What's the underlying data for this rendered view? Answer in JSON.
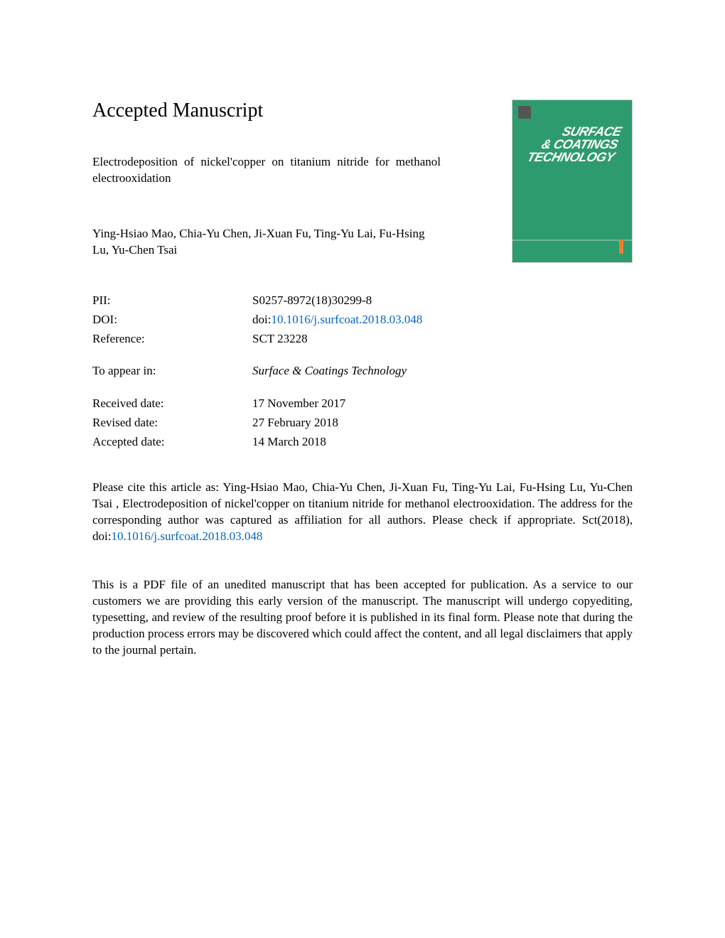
{
  "header": {
    "main_title": "Accepted Manuscript",
    "article_title": "Electrodeposition of nickel'copper on titanium nitride for methanol electrooxidation",
    "authors": "Ying-Hsiao Mao, Chia-Yu Chen, Ji-Xuan Fu, Ting-Yu Lai, Fu-Hsing Lu, Yu-Chen Tsai"
  },
  "journal_cover": {
    "line1": "SURFACE",
    "line2": "& COATINGS",
    "line3": "TECHNOLOGY",
    "background_color": "#2e9b6e",
    "text_color": "#ffffff"
  },
  "metadata": {
    "pii": {
      "label": "PII:",
      "value": "S0257-8972(18)30299-8"
    },
    "doi": {
      "label": "DOI:",
      "prefix": "doi:",
      "link": "10.1016/j.surfcoat.2018.03.048"
    },
    "reference": {
      "label": "Reference:",
      "value": "SCT 23228"
    },
    "to_appear": {
      "label": "To appear in:",
      "value": "Surface & Coatings Technology"
    },
    "received": {
      "label": "Received date:",
      "value": "17 November 2017"
    },
    "revised": {
      "label": "Revised date:",
      "value": "27 February 2018"
    },
    "accepted": {
      "label": "Accepted date:",
      "value": "14 March 2018"
    }
  },
  "citation": {
    "text_before": "Please cite this article as: Ying-Hsiao Mao, Chia-Yu Chen, Ji-Xuan Fu, Ting-Yu Lai, Fu-Hsing Lu, Yu-Chen Tsai , Electrodeposition of nickel'copper on titanium nitride for methanol electrooxidation. The address for the corresponding author was captured as affiliation for all authors. Please check if appropriate. Sct(2018), doi:",
    "link": "10.1016/j.surfcoat.2018.03.048"
  },
  "disclaimer": "This is a PDF file of an unedited manuscript that has been accepted for publication. As a service to our customers we are providing this early version of the manuscript. The manuscript will undergo copyediting, typesetting, and review of the resulting proof before it is published in its final form. Please note that during the production process errors may be discovered which could affect the content, and all legal disclaimers that apply to the journal pertain.",
  "colors": {
    "link_color": "#0563c1",
    "text_color": "#000000",
    "background": "#ffffff"
  }
}
